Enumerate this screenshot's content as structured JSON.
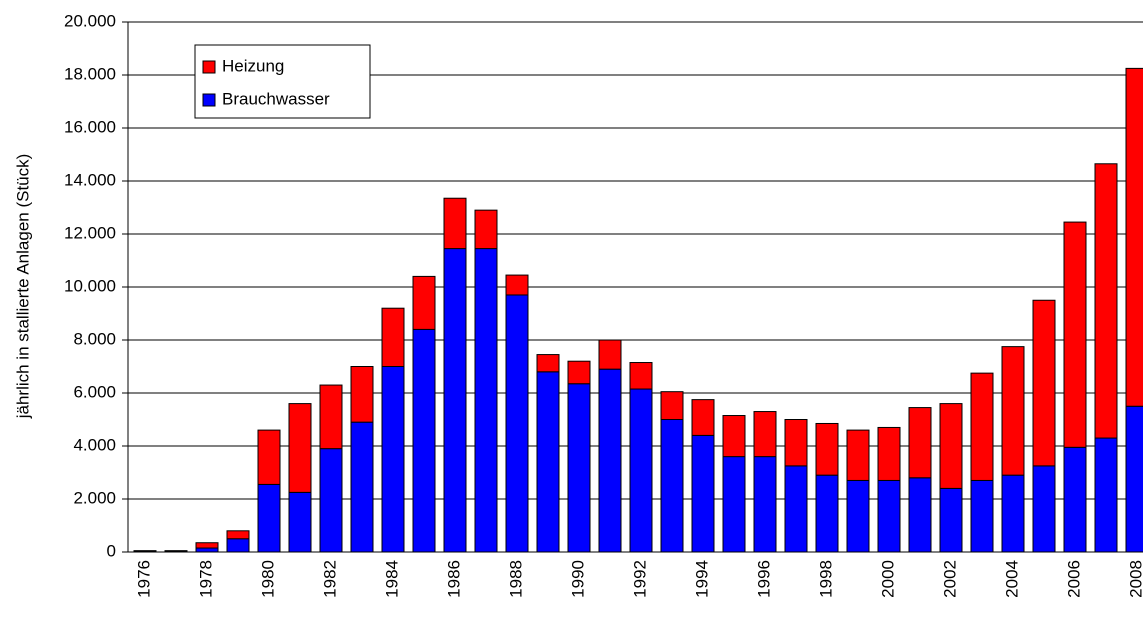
{
  "chart_data": {
    "type": "stacked_bar",
    "ylabel": "jährlich in stallierte Anlagen (Stück)",
    "categories": [
      "1976",
      null,
      "1978",
      null,
      "1980",
      null,
      "1982",
      null,
      "1984",
      null,
      "1986",
      null,
      "1988",
      null,
      "1990",
      null,
      "1992",
      null,
      "1994",
      null,
      "1996",
      null,
      "1998",
      null,
      "2000",
      null,
      "2002",
      null,
      "2004",
      null,
      "2006",
      null,
      "2008"
    ],
    "series": [
      {
        "name": "Brauchwasser",
        "color": "#0000ff",
        "values": [
          40,
          40,
          150,
          500,
          2550,
          2250,
          3900,
          4900,
          7000,
          8400,
          11450,
          11450,
          9700,
          6800,
          6350,
          6900,
          6150,
          5000,
          4400,
          3600,
          3600,
          3250,
          2900,
          2700,
          2700,
          2800,
          2400,
          2700,
          2900,
          3250,
          3950,
          4300,
          5500
        ]
      },
      {
        "name": "Heizung",
        "color": "#ff0000",
        "values": [
          10,
          10,
          200,
          300,
          2050,
          3350,
          2400,
          2100,
          2200,
          2000,
          1900,
          1450,
          750,
          650,
          850,
          1100,
          1000,
          1050,
          1350,
          1550,
          1700,
          1750,
          1950,
          1900,
          2000,
          2650,
          3200,
          4050,
          4850,
          6250,
          8500,
          10350,
          12750
        ]
      }
    ],
    "ylim": [
      0,
      20000
    ],
    "yticks": [
      0,
      {
        "value": 2000,
        "label": "2.000"
      },
      {
        "value": 4000,
        "label": "4.000"
      },
      {
        "value": 6000,
        "label": "6.000"
      },
      {
        "value": 8000,
        "label": "8.000"
      },
      {
        "value": 10000,
        "label": "10.000"
      },
      {
        "value": 12000,
        "label": "12.000"
      },
      {
        "value": 14000,
        "label": "14.000"
      },
      {
        "value": 16000,
        "label": "16.000"
      },
      {
        "value": 18000,
        "label": "18.000"
      },
      {
        "value": 20000,
        "label": "20.000"
      }
    ],
    "grid": true,
    "legend": "upper left"
  }
}
